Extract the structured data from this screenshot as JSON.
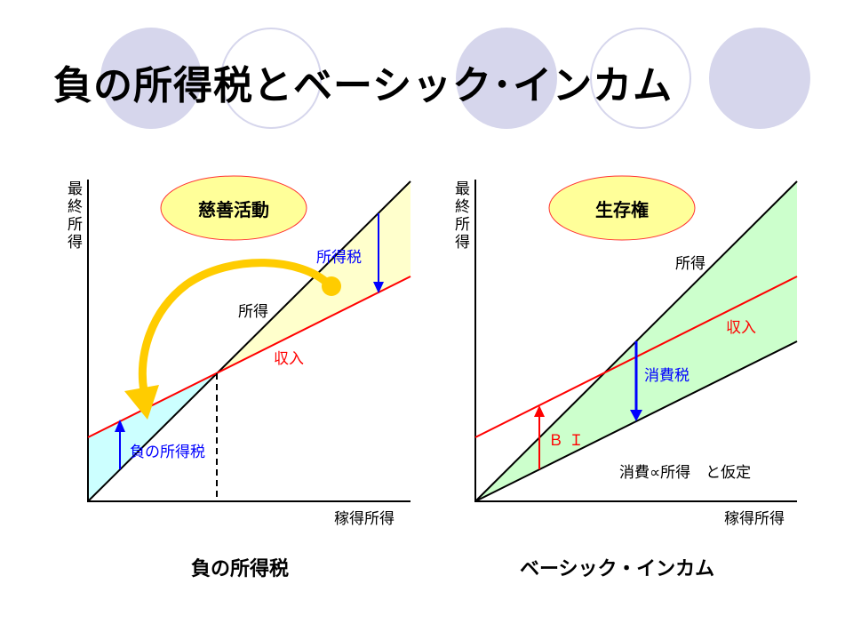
{
  "title": "負の所得税とベーシック･インカム",
  "colors": {
    "circle": "#d6d6ec",
    "ellipse_fill": "#ffff99",
    "ellipse_stroke": "#ff3333",
    "income_line": "#ff0000",
    "tax_arrow": "#0000ff",
    "yellow_fill": "#ffffcc",
    "cyan_fill": "#ccffff",
    "green_fill": "#ccffcc",
    "curve_arrow": "#ffcc00"
  },
  "left": {
    "badge": "慈善活動",
    "y_axis": "最終所得",
    "x_axis": "稼得所得",
    "income_label": "所得",
    "revenue_label": "収入",
    "tax_label": "所得税",
    "neg_tax_label": "負の所得税",
    "caption": "負の所得税"
  },
  "right": {
    "badge": "生存権",
    "y_axis": "最終所得",
    "x_axis": "稼得所得",
    "income_label": "所得",
    "revenue_label": "収入",
    "tax_label": "消費税",
    "bi_label": "ＢＩ",
    "assumption": "消費∝所得　と仮定",
    "caption": "ベーシック・インカム"
  }
}
